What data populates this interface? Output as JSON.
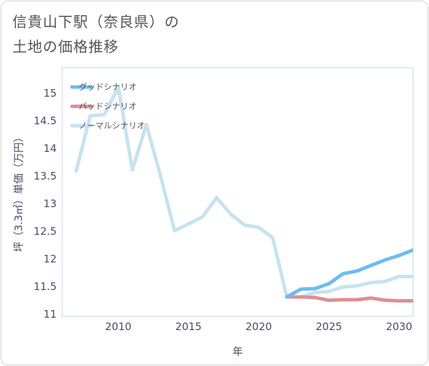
{
  "title": {
    "line1": "信貴山下駅（奈良県）の",
    "line2": "土地の価格推移"
  },
  "chart_data": {
    "type": "line",
    "xlabel": "年",
    "ylabel": "坪（3.3㎡）単価（万円）",
    "xlim": [
      2006,
      2031
    ],
    "ylim": [
      10.95,
      15.45
    ],
    "xticks": [
      2010,
      2015,
      2020,
      2025,
      2030
    ],
    "yticks": [
      11,
      11.5,
      12,
      12.5,
      13,
      13.5,
      14,
      14.5,
      15
    ],
    "ytick_labels": [
      "11",
      "11.5",
      "12",
      "12.5",
      "13",
      "13.5",
      "14",
      "14.5",
      "15"
    ],
    "legend_position": "top-left",
    "series": [
      {
        "name": "ノーマルシナリオ",
        "color": "#c6e2ef",
        "x": [
          2007,
          2008,
          2009,
          2010,
          2011,
          2012,
          2013,
          2014,
          2015,
          2016,
          2017,
          2018,
          2019,
          2020,
          2021,
          2022,
          2023,
          2024,
          2025,
          2026,
          2027,
          2028,
          2029,
          2030,
          2031
        ],
        "values": [
          13.58,
          14.58,
          14.6,
          15.1,
          13.6,
          14.42,
          13.5,
          12.5,
          12.62,
          12.75,
          13.1,
          12.8,
          12.6,
          12.56,
          12.37,
          11.3,
          11.3,
          11.38,
          11.4,
          11.48,
          11.5,
          11.56,
          11.58,
          11.67,
          11.67
        ]
      },
      {
        "name": "バッドシナリオ",
        "color": "#de8e95",
        "x": [
          2022,
          2023,
          2024,
          2025,
          2026,
          2027,
          2028,
          2029,
          2030,
          2031
        ],
        "values": [
          11.3,
          11.3,
          11.29,
          11.24,
          11.25,
          11.25,
          11.28,
          11.24,
          11.23,
          11.23
        ]
      },
      {
        "name": "グッドシナリオ",
        "color": "#6bbcf1",
        "x": [
          2022,
          2023,
          2024,
          2025,
          2026,
          2027,
          2028,
          2029,
          2030,
          2031
        ],
        "values": [
          11.3,
          11.44,
          11.45,
          11.54,
          11.72,
          11.77,
          11.87,
          11.97,
          12.05,
          12.15
        ]
      }
    ],
    "legend": [
      {
        "name": "グッドシナリオ",
        "color": "#6bbcf1"
      },
      {
        "name": "バッドシナリオ",
        "color": "#de8e95"
      },
      {
        "name": "ノーマルシナリオ",
        "color": "#c6e2ef"
      }
    ]
  }
}
